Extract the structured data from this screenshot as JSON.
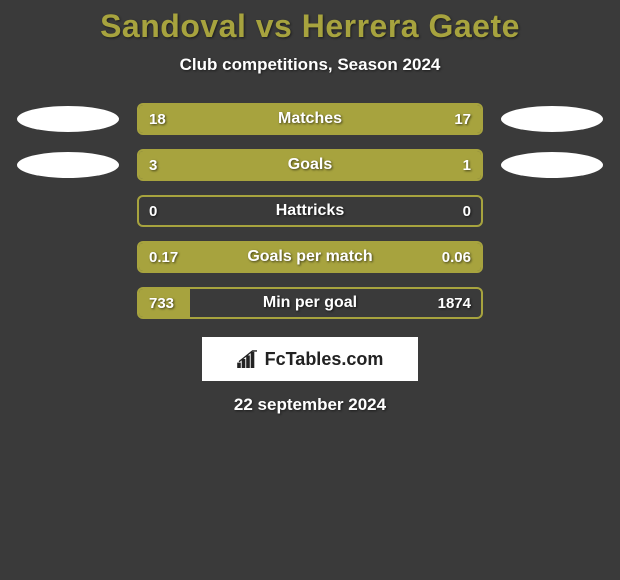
{
  "title": "Sandoval vs Herrera Gaete",
  "subtitle": "Club competitions, Season 2024",
  "colors": {
    "background": "#3a3a3a",
    "accent": "#a7a33e",
    "ellipse": "#ffffff",
    "text": "#ffffff",
    "logo_bg": "#ffffff",
    "logo_text": "#222222"
  },
  "rows": [
    {
      "label": "Matches",
      "left_value": "18",
      "right_value": "17",
      "left_pct": 51.4,
      "right_pct": 48.6,
      "show_left_ellipse": true,
      "show_right_ellipse": true
    },
    {
      "label": "Goals",
      "left_value": "3",
      "right_value": "1",
      "left_pct": 75.0,
      "right_pct": 25.0,
      "show_left_ellipse": true,
      "show_right_ellipse": true
    },
    {
      "label": "Hattricks",
      "left_value": "0",
      "right_value": "0",
      "left_pct": 0,
      "right_pct": 0,
      "show_left_ellipse": false,
      "show_right_ellipse": false
    },
    {
      "label": "Goals per match",
      "left_value": "0.17",
      "right_value": "0.06",
      "left_pct": 73.9,
      "right_pct": 26.1,
      "show_left_ellipse": false,
      "show_right_ellipse": false
    },
    {
      "label": "Min per goal",
      "left_value": "733",
      "right_value": "1874",
      "left_pct": 15.0,
      "right_pct": 0,
      "show_left_ellipse": false,
      "show_right_ellipse": false
    }
  ],
  "logo_text": "FcTables.com",
  "date": "22 september 2024"
}
